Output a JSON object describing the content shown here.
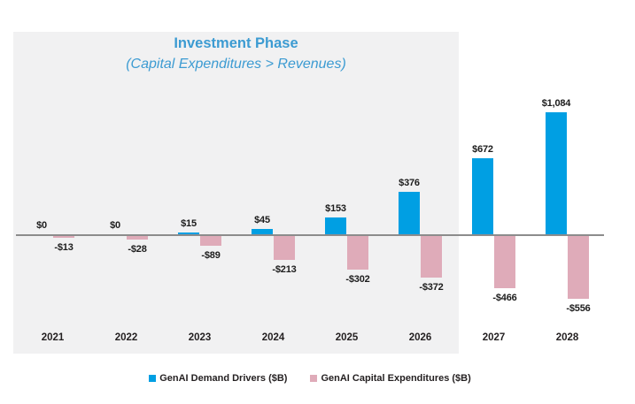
{
  "chart_data": {
    "type": "bar",
    "title": "Investment Phase",
    "subtitle": "(Capital Expenditures > Revenues)",
    "title_color": "#3c9bd2",
    "categories": [
      "2021",
      "2022",
      "2023",
      "2024",
      "2025",
      "2026",
      "2027",
      "2028"
    ],
    "series": [
      {
        "name": "GenAI Demand Drivers ($B)",
        "color": "#009fe3",
        "values": [
          0,
          0,
          15,
          45,
          153,
          376,
          672,
          1084
        ],
        "labels": [
          "$0",
          "$0",
          "$15",
          "$45",
          "$153",
          "$376",
          "$672",
          "$1,084"
        ]
      },
      {
        "name": "GenAI Capital Expenditures ($B)",
        "color": "#dfabb9",
        "values": [
          -13,
          -28,
          -89,
          -213,
          -302,
          -372,
          -466,
          -556
        ],
        "labels": [
          "-$13",
          "-$28",
          "-$89",
          "-$213",
          "-$302",
          "-$372",
          "-$466",
          "-$556"
        ]
      }
    ],
    "highlight_region": {
      "label": "Investment Phase",
      "covers_categories": [
        "2021",
        "2022",
        "2023",
        "2024",
        "2025",
        "2026"
      ],
      "color": "#f1f1f2"
    },
    "axis": {
      "zero_line_color": "#8c8c8c",
      "ylim": [
        -600,
        1100
      ],
      "grid": false
    },
    "legend_position": "bottom",
    "value_label_color": "#1c1c1c"
  }
}
